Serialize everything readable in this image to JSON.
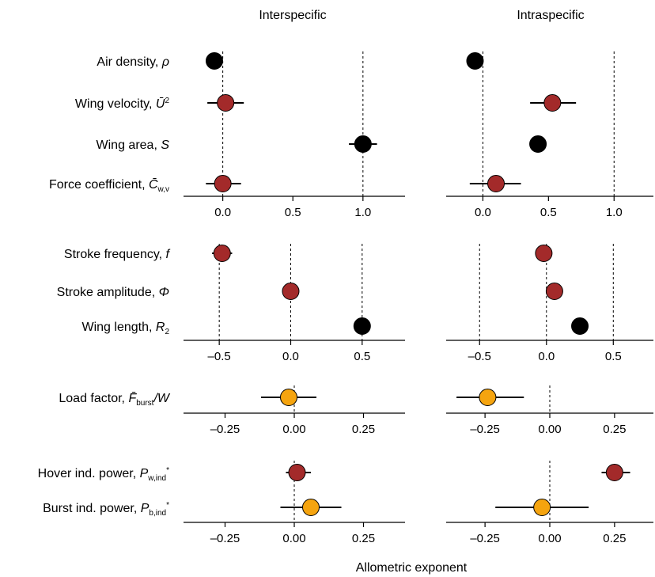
{
  "chart_data": {
    "type": "scatter",
    "column_titles": [
      "Interspecific",
      "Intraspecific"
    ],
    "xlabel": "Allometric exponent",
    "colors": {
      "black": "#000000",
      "red": "#a32a2a",
      "orange": "#f5a40f"
    },
    "panels": [
      {
        "group": 1,
        "xlim": [
          -0.28,
          1.3
        ],
        "ticks": [
          0.0,
          0.5,
          1.0
        ],
        "tick_labels": [
          "0.0",
          "0.5",
          "1.0"
        ],
        "reference_lines": [
          0.0,
          1.0
        ],
        "rows": [
          {
            "label": "Air density, ",
            "symbol": "ρ",
            "sub": "",
            "sup": "",
            "inter": {
              "value": -0.06,
              "ci": null,
              "color": "black"
            },
            "intra": {
              "value": -0.06,
              "ci": null,
              "color": "black"
            }
          },
          {
            "label": "Wing velocity, ",
            "symbol": "Ū",
            "sub": "",
            "sup": "2",
            "inter": {
              "value": 0.02,
              "ci": [
                -0.11,
                0.15
              ],
              "color": "red"
            },
            "intra": {
              "value": 0.53,
              "ci": [
                0.36,
                0.71
              ],
              "color": "red"
            }
          },
          {
            "label": "Wing area, ",
            "symbol": "S",
            "sub": "",
            "sup": "",
            "inter": {
              "value": 1.0,
              "ci": [
                0.9,
                1.1
              ],
              "color": "black"
            },
            "intra": {
              "value": 0.42,
              "ci": null,
              "color": "black"
            }
          },
          {
            "label": "Force coefficient, ",
            "symbol": "C̄",
            "sub": "w,v",
            "sup": "",
            "inter": {
              "value": 0.0,
              "ci": [
                -0.12,
                0.13
              ],
              "color": "red"
            },
            "intra": {
              "value": 0.1,
              "ci": [
                -0.1,
                0.29
              ],
              "color": "red"
            }
          }
        ]
      },
      {
        "group": 2,
        "xlim": [
          -0.75,
          0.8
        ],
        "ticks": [
          -0.5,
          0.0,
          0.5
        ],
        "tick_labels": [
          "–0.5",
          "0.0",
          "0.5"
        ],
        "reference_lines": [
          -0.5,
          0.0,
          0.5
        ],
        "rows": [
          {
            "label": "Stroke frequency, ",
            "symbol": "f",
            "sub": "",
            "sup": "",
            "inter": {
              "value": -0.48,
              "ci": [
                -0.55,
                -0.41
              ],
              "color": "red"
            },
            "intra": {
              "value": -0.02,
              "ci": [
                -0.06,
                0.02
              ],
              "color": "red"
            }
          },
          {
            "label": "Stroke amplitude, ",
            "symbol": "Φ",
            "sub": "",
            "sup": "",
            "inter": {
              "value": 0.0,
              "ci": null,
              "color": "red"
            },
            "intra": {
              "value": 0.06,
              "ci": [
                0.02,
                0.1
              ],
              "color": "red"
            }
          },
          {
            "label": "Wing length, ",
            "symbol": "R",
            "sub": "2",
            "sup": "",
            "inter": {
              "value": 0.5,
              "ci": null,
              "color": "black"
            },
            "intra": {
              "value": 0.25,
              "ci": null,
              "color": "black"
            }
          }
        ]
      },
      {
        "group": 3,
        "xlim": [
          -0.4,
          0.4
        ],
        "ticks": [
          -0.25,
          0.0,
          0.25
        ],
        "tick_labels": [
          "–0.25",
          "0.00",
          "0.25"
        ],
        "reference_lines": [
          0.0
        ],
        "rows": [
          {
            "label": "Load factor, ",
            "symbol": "F̄",
            "sub": "burst",
            "sup": "",
            "suffix": "/W",
            "inter": {
              "value": -0.02,
              "ci": [
                -0.12,
                0.08
              ],
              "color": "orange"
            },
            "intra": {
              "value": -0.24,
              "ci": [
                -0.36,
                -0.1
              ],
              "color": "orange"
            }
          }
        ]
      },
      {
        "group": 4,
        "xlim": [
          -0.4,
          0.4
        ],
        "ticks": [
          -0.25,
          0.0,
          0.25
        ],
        "tick_labels": [
          "–0.25",
          "0.00",
          "0.25"
        ],
        "reference_lines": [
          0.0
        ],
        "rows": [
          {
            "label": "Hover ind. power, ",
            "symbol": "P",
            "sub": "w,ind",
            "sup": "*",
            "inter": {
              "value": 0.01,
              "ci": [
                -0.03,
                0.06
              ],
              "color": "red"
            },
            "intra": {
              "value": 0.25,
              "ci": [
                0.2,
                0.31
              ],
              "color": "red"
            }
          },
          {
            "label": "Burst ind. power, ",
            "symbol": "P",
            "sub": "b,ind",
            "sup": "*",
            "inter": {
              "value": 0.06,
              "ci": [
                -0.05,
                0.17
              ],
              "color": "orange"
            },
            "intra": {
              "value": -0.03,
              "ci": [
                -0.21,
                0.15
              ],
              "color": "orange"
            }
          }
        ]
      }
    ]
  }
}
